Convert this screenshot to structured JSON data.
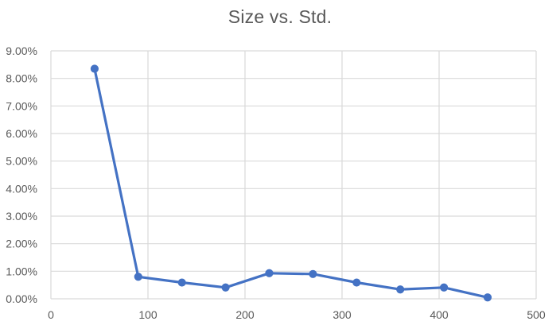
{
  "chart_data": {
    "type": "scatter",
    "title": "Size vs. Std.",
    "xlabel": "",
    "ylabel": "",
    "xlim": [
      0,
      500
    ],
    "ylim": [
      0,
      0.09
    ],
    "x_ticks": [
      0,
      100,
      200,
      300,
      400,
      500
    ],
    "x_tick_labels": [
      "0",
      "100",
      "200",
      "300",
      "400",
      "500"
    ],
    "y_ticks": [
      0,
      0.01,
      0.02,
      0.03,
      0.04,
      0.05,
      0.06,
      0.07,
      0.08,
      0.09
    ],
    "y_tick_labels": [
      "0.00%",
      "1.00%",
      "2.00%",
      "3.00%",
      "4.00%",
      "5.00%",
      "6.00%",
      "7.00%",
      "8.00%",
      "9.00%"
    ],
    "grid": true,
    "legend": "none",
    "series": [
      {
        "x": [
          45,
          90,
          135,
          180,
          225,
          270,
          315,
          360,
          405,
          450
        ],
        "y": [
          0.0835,
          0.008,
          0.0059,
          0.0041,
          0.0093,
          0.009,
          0.0059,
          0.0034,
          0.0041,
          0.0005
        ],
        "color": "#4472C4",
        "style": "line+markers"
      }
    ]
  }
}
